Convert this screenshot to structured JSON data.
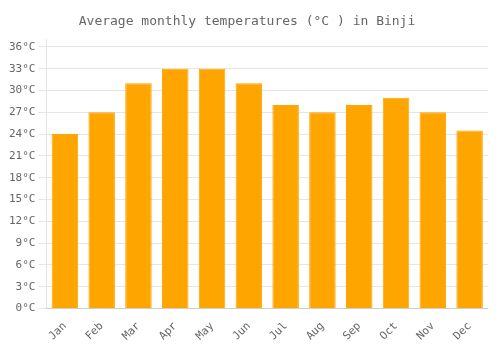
{
  "chart_data": {
    "type": "bar",
    "title": "Average monthly temperatures (°C ) in Binji",
    "categories": [
      "Jan",
      "Feb",
      "Mar",
      "Apr",
      "May",
      "Jun",
      "Jul",
      "Aug",
      "Sep",
      "Oct",
      "Nov",
      "Dec"
    ],
    "values": [
      24,
      27,
      31,
      33,
      33,
      31,
      28,
      27,
      28,
      29,
      27,
      24.5
    ],
    "color": "#FFA500",
    "ylim": [
      0,
      37
    ],
    "yticks": [
      {
        "value": 0,
        "label": "0°C"
      },
      {
        "value": 3,
        "label": "3°C"
      },
      {
        "value": 6,
        "label": "6°C"
      },
      {
        "value": 9,
        "label": "9°C"
      },
      {
        "value": 12,
        "label": "12°C"
      },
      {
        "value": 15,
        "label": "15°C"
      },
      {
        "value": 18,
        "label": "18°C"
      },
      {
        "value": 21,
        "label": "21°C"
      },
      {
        "value": 24,
        "label": "24°C"
      },
      {
        "value": 27,
        "label": "27°C"
      },
      {
        "value": 30,
        "label": "30°C"
      },
      {
        "value": 33,
        "label": "33°C"
      },
      {
        "value": 36,
        "label": "36°C"
      }
    ],
    "grid": true
  }
}
